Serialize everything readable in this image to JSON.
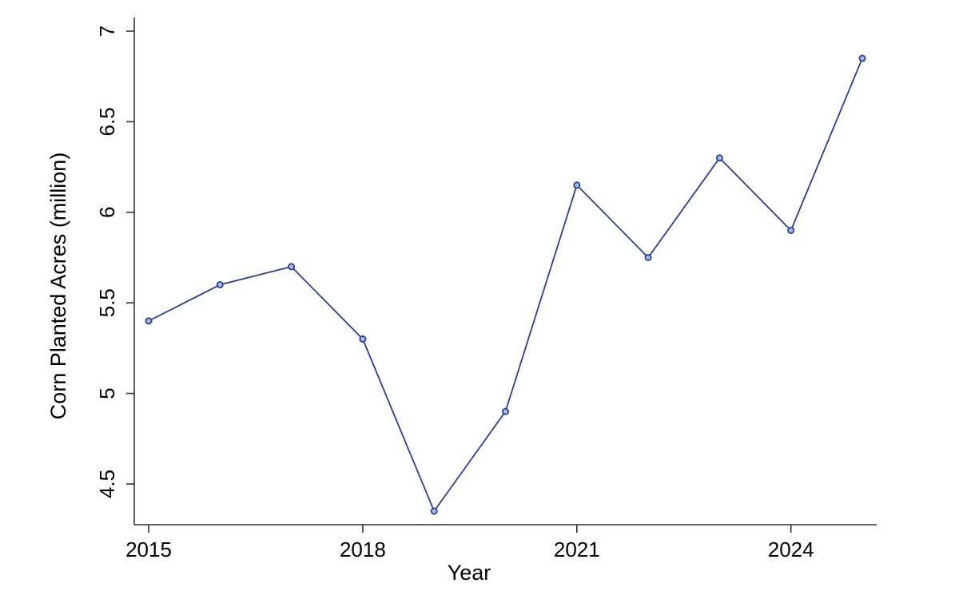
{
  "chart_data": {
    "type": "line",
    "title": "",
    "xlabel": "Year",
    "ylabel": "Corn Planted Acres (million)",
    "xlim": [
      2015,
      2025
    ],
    "ylim": [
      4.35,
      7.0
    ],
    "x_ticks": [
      2015,
      2018,
      2021,
      2024
    ],
    "x_tick_labels": [
      "2015",
      "2018",
      "2021",
      "2024"
    ],
    "y_ticks": [
      4.5,
      5,
      5.5,
      6,
      6.5,
      7
    ],
    "y_tick_labels": [
      "4.5",
      "5",
      "5.5",
      "6",
      "6.5",
      "7"
    ],
    "grid": false,
    "legend": "none",
    "series": [
      {
        "x": [
          2015,
          2016,
          2017,
          2018,
          2019,
          2020,
          2021,
          2022,
          2023,
          2024,
          2025
        ],
        "values": [
          5.4,
          5.6,
          5.7,
          5.3,
          4.35,
          4.9,
          6.15,
          5.75,
          6.3,
          5.9,
          6.85
        ],
        "color": "#2b3f8c",
        "marker_fill": "#a9bde6"
      }
    ]
  }
}
